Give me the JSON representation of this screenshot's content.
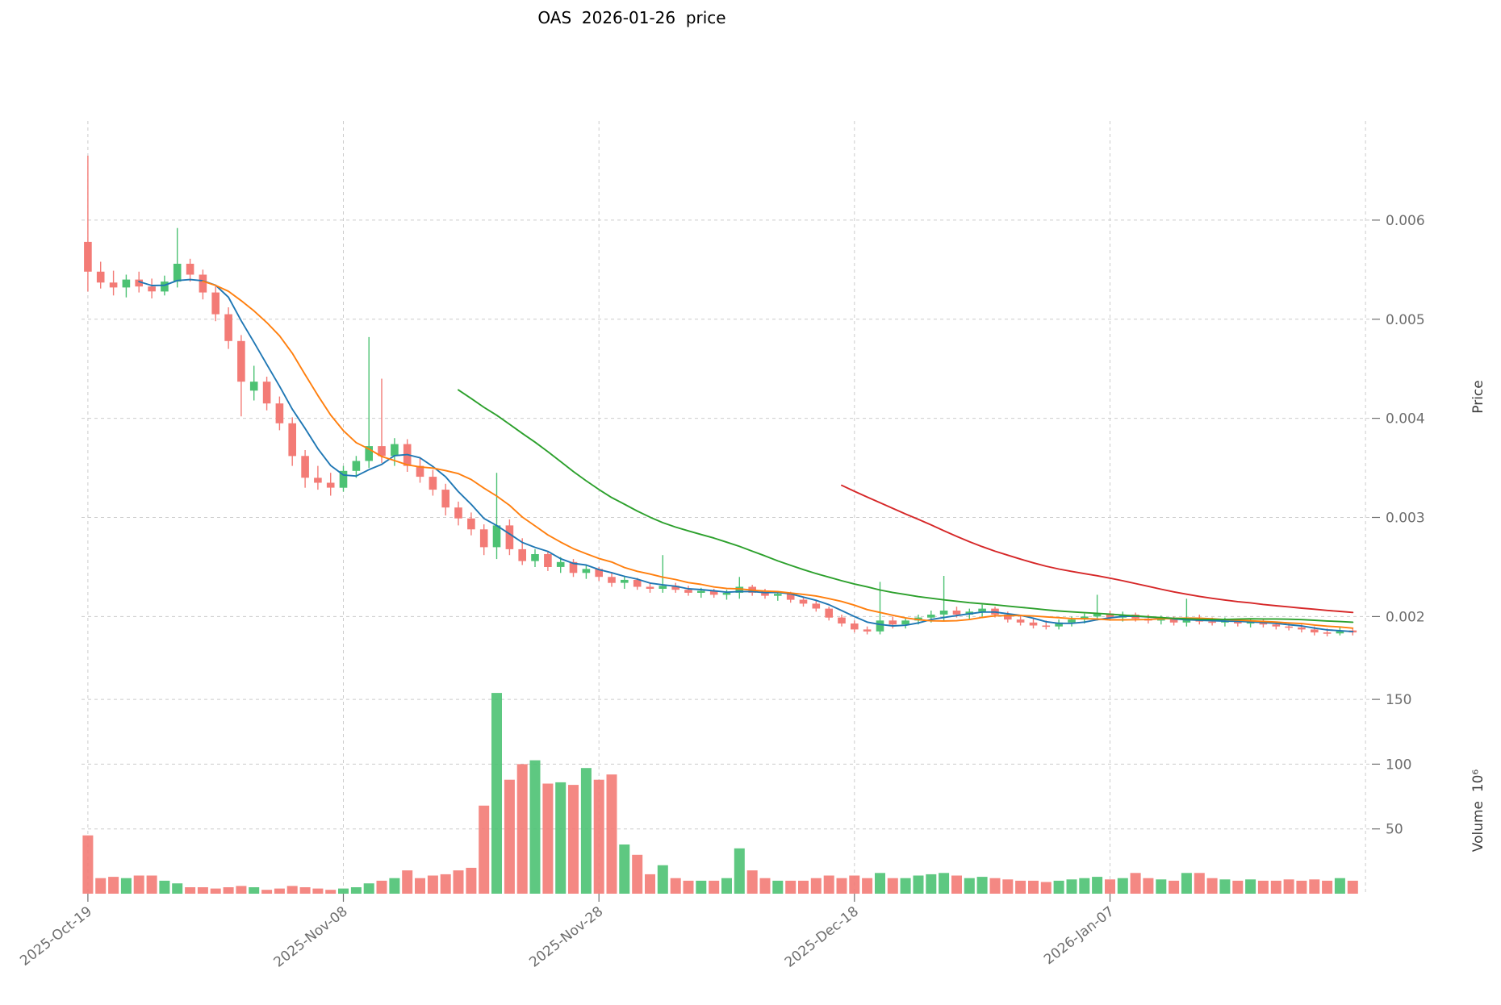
{
  "chart_data": {
    "type": "candlestick",
    "title": "OAS  2026-01-26  price",
    "xlabel": "",
    "ylabel": "Price",
    "ylabel_volume": "Volume  10⁶",
    "x_tick_labels": [
      "2025-Oct-19",
      "2025-Nov-08",
      "2025-Nov-28",
      "2025-Dec-18",
      "2026-Jan-07"
    ],
    "x_tick_indices": [
      0,
      20,
      40,
      60,
      80
    ],
    "x_gridline_indices": [
      0,
      20,
      40,
      60,
      80,
      100
    ],
    "xlim": [
      -0.5,
      100.5
    ],
    "price_ticks": [
      0.002,
      0.003,
      0.004,
      0.005,
      0.006
    ],
    "price_tick_labels": [
      "0.002",
      "0.003",
      "0.004",
      "0.005",
      "0.006"
    ],
    "ylim_price": [
      0.00145,
      0.007
    ],
    "volume_ticks": [
      50,
      100,
      150
    ],
    "volume_tick_labels": [
      "50",
      "100",
      "150"
    ],
    "ylim_volume": [
      0,
      165
    ],
    "grid": true,
    "legend": false,
    "moving_averages": {
      "windows": [
        5,
        10,
        30,
        60
      ],
      "colors": [
        "#1f77b4",
        "#ff7f0e",
        "#2ca02c",
        "#d62728"
      ]
    },
    "colors": {
      "up": "#4cc273",
      "down": "#f37b76",
      "grid": "#cccccc",
      "tick_text": "#6e6e6e",
      "title": "#000000"
    },
    "ohlc": [
      [
        0.00578,
        0.00665,
        0.00528,
        0.00548
      ],
      [
        0.00548,
        0.00558,
        0.00531,
        0.00537
      ],
      [
        0.00537,
        0.00549,
        0.00524,
        0.00532
      ],
      [
        0.00532,
        0.00545,
        0.00522,
        0.0054
      ],
      [
        0.0054,
        0.00548,
        0.00527,
        0.00533
      ],
      [
        0.00533,
        0.00541,
        0.00521,
        0.00528
      ],
      [
        0.00528,
        0.00544,
        0.00524,
        0.00538
      ],
      [
        0.00538,
        0.00592,
        0.00532,
        0.00556
      ],
      [
        0.00556,
        0.00561,
        0.00538,
        0.00545
      ],
      [
        0.00545,
        0.0055,
        0.0052,
        0.00527
      ],
      [
        0.00527,
        0.00533,
        0.00498,
        0.00505
      ],
      [
        0.00505,
        0.00512,
        0.0047,
        0.00478
      ],
      [
        0.00478,
        0.00484,
        0.00402,
        0.00437
      ],
      [
        0.00428,
        0.00453,
        0.00418,
        0.00437
      ],
      [
        0.00437,
        0.00442,
        0.00408,
        0.00415
      ],
      [
        0.00415,
        0.00422,
        0.00388,
        0.00395
      ],
      [
        0.00395,
        0.00401,
        0.00352,
        0.00362
      ],
      [
        0.00362,
        0.00368,
        0.0033,
        0.0034
      ],
      [
        0.0034,
        0.00352,
        0.00328,
        0.00335
      ],
      [
        0.00335,
        0.00345,
        0.00322,
        0.0033
      ],
      [
        0.0033,
        0.00352,
        0.00326,
        0.00347
      ],
      [
        0.00347,
        0.00362,
        0.0034,
        0.00357
      ],
      [
        0.00357,
        0.00482,
        0.0035,
        0.00372
      ],
      [
        0.00372,
        0.0044,
        0.00355,
        0.00362
      ],
      [
        0.00362,
        0.0038,
        0.00352,
        0.00374
      ],
      [
        0.00374,
        0.00379,
        0.00346,
        0.00352
      ],
      [
        0.00352,
        0.0036,
        0.00335,
        0.00341
      ],
      [
        0.00341,
        0.00348,
        0.00322,
        0.00328
      ],
      [
        0.00328,
        0.00334,
        0.00302,
        0.0031
      ],
      [
        0.0031,
        0.00316,
        0.00292,
        0.00299
      ],
      [
        0.00299,
        0.00305,
        0.00282,
        0.00288
      ],
      [
        0.00288,
        0.00293,
        0.00262,
        0.0027
      ],
      [
        0.0027,
        0.00345,
        0.00258,
        0.00292
      ],
      [
        0.00292,
        0.00298,
        0.00262,
        0.00268
      ],
      [
        0.00268,
        0.00279,
        0.00252,
        0.00256
      ],
      [
        0.00256,
        0.00268,
        0.0025,
        0.00263
      ],
      [
        0.00263,
        0.00266,
        0.00246,
        0.0025
      ],
      [
        0.0025,
        0.0026,
        0.00244,
        0.00255
      ],
      [
        0.00255,
        0.00258,
        0.0024,
        0.00244
      ],
      [
        0.00244,
        0.00252,
        0.00238,
        0.00248
      ],
      [
        0.00248,
        0.0025,
        0.00236,
        0.0024
      ],
      [
        0.0024,
        0.00244,
        0.0023,
        0.00234
      ],
      [
        0.00234,
        0.0024,
        0.00228,
        0.00237
      ],
      [
        0.00237,
        0.00239,
        0.00227,
        0.0023
      ],
      [
        0.0023,
        0.00234,
        0.00224,
        0.00228
      ],
      [
        0.00228,
        0.00262,
        0.00224,
        0.00231
      ],
      [
        0.00231,
        0.00234,
        0.00224,
        0.00227
      ],
      [
        0.00227,
        0.00231,
        0.00221,
        0.00224
      ],
      [
        0.00224,
        0.00229,
        0.00219,
        0.00226
      ],
      [
        0.00226,
        0.00228,
        0.00219,
        0.00222
      ],
      [
        0.00222,
        0.00227,
        0.00217,
        0.00224
      ],
      [
        0.00224,
        0.0024,
        0.00218,
        0.0023
      ],
      [
        0.0023,
        0.00232,
        0.00221,
        0.00224
      ],
      [
        0.00224,
        0.00228,
        0.00218,
        0.00221
      ],
      [
        0.00221,
        0.00226,
        0.00216,
        0.00223
      ],
      [
        0.00223,
        0.00225,
        0.00214,
        0.00217
      ],
      [
        0.00217,
        0.0022,
        0.0021,
        0.00213
      ],
      [
        0.00213,
        0.00216,
        0.00205,
        0.00208
      ],
      [
        0.00208,
        0.0021,
        0.00196,
        0.00199
      ],
      [
        0.00199,
        0.00202,
        0.0019,
        0.00193
      ],
      [
        0.00193,
        0.00196,
        0.00184,
        0.00187
      ],
      [
        0.00187,
        0.0019,
        0.00182,
        0.00185
      ],
      [
        0.00185,
        0.00235,
        0.00182,
        0.00196
      ],
      [
        0.00196,
        0.002,
        0.00188,
        0.00192
      ],
      [
        0.00192,
        0.00199,
        0.00188,
        0.00196
      ],
      [
        0.00196,
        0.00202,
        0.00192,
        0.00199
      ],
      [
        0.00199,
        0.00206,
        0.00194,
        0.00202
      ],
      [
        0.00202,
        0.00241,
        0.00196,
        0.00206
      ],
      [
        0.00206,
        0.0021,
        0.00199,
        0.00202
      ],
      [
        0.00202,
        0.00208,
        0.00197,
        0.00205
      ],
      [
        0.00205,
        0.00212,
        0.002,
        0.00208
      ],
      [
        0.00208,
        0.0021,
        0.00199,
        0.00202
      ],
      [
        0.00202,
        0.00205,
        0.00194,
        0.00197
      ],
      [
        0.00197,
        0.00201,
        0.00191,
        0.00194
      ],
      [
        0.00194,
        0.00198,
        0.00188,
        0.00191
      ],
      [
        0.00191,
        0.00196,
        0.00187,
        0.0019
      ],
      [
        0.0019,
        0.00197,
        0.00187,
        0.00194
      ],
      [
        0.00194,
        0.002,
        0.0019,
        0.00197
      ],
      [
        0.00197,
        0.00203,
        0.00193,
        0.002
      ],
      [
        0.002,
        0.00222,
        0.00196,
        0.00203
      ],
      [
        0.00203,
        0.00206,
        0.00196,
        0.00199
      ],
      [
        0.00199,
        0.00205,
        0.00195,
        0.00202
      ],
      [
        0.00202,
        0.00204,
        0.00195,
        0.00198
      ],
      [
        0.00198,
        0.00202,
        0.00193,
        0.00196
      ],
      [
        0.00196,
        0.00201,
        0.00192,
        0.00198
      ],
      [
        0.00198,
        0.002,
        0.00191,
        0.00194
      ],
      [
        0.00194,
        0.00218,
        0.0019,
        0.00198
      ],
      [
        0.00198,
        0.00202,
        0.00192,
        0.00195
      ],
      [
        0.00195,
        0.00199,
        0.00191,
        0.00194
      ],
      [
        0.00194,
        0.00199,
        0.0019,
        0.00196
      ],
      [
        0.00196,
        0.00198,
        0.0019,
        0.00193
      ],
      [
        0.00193,
        0.00198,
        0.00189,
        0.00195
      ],
      [
        0.00195,
        0.00197,
        0.00189,
        0.00192
      ],
      [
        0.00192,
        0.00195,
        0.00187,
        0.0019
      ],
      [
        0.0019,
        0.00194,
        0.00186,
        0.00189
      ],
      [
        0.00189,
        0.00192,
        0.00184,
        0.00187
      ],
      [
        0.00187,
        0.0019,
        0.00181,
        0.00184
      ],
      [
        0.00184,
        0.00188,
        0.0018,
        0.00183
      ],
      [
        0.00183,
        0.00189,
        0.00181,
        0.00186
      ],
      [
        0.00186,
        0.00188,
        0.00181,
        0.00184
      ]
    ],
    "volume": [
      45,
      12,
      13,
      12,
      14,
      14,
      10,
      8,
      5,
      5,
      4,
      5,
      6,
      5,
      3,
      4,
      6,
      5,
      4,
      3,
      4,
      5,
      8,
      10,
      12,
      18,
      12,
      14,
      15,
      18,
      20,
      68,
      155,
      88,
      100,
      103,
      85,
      86,
      84,
      97,
      88,
      92,
      38,
      30,
      15,
      22,
      12,
      10,
      10,
      10,
      12,
      35,
      18,
      12,
      10,
      10,
      10,
      12,
      14,
      12,
      14,
      12,
      16,
      12,
      12,
      14,
      15,
      16,
      14,
      12,
      13,
      12,
      11,
      10,
      10,
      9,
      10,
      11,
      12,
      13,
      11,
      12,
      16,
      12,
      11,
      10,
      16,
      16,
      12,
      11,
      10,
      11,
      10,
      10,
      11,
      10,
      11,
      10,
      12,
      10
    ]
  }
}
